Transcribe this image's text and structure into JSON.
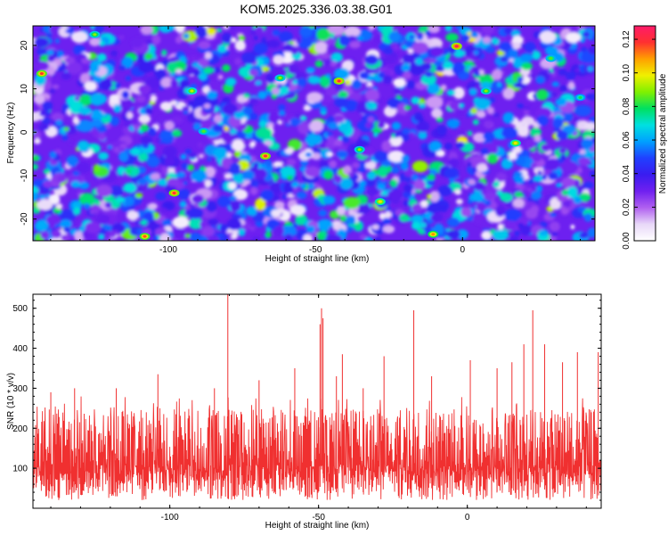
{
  "title": "KOM5.2025.336.03.38.G01",
  "chart_data": [
    {
      "type": "heatmap",
      "name": "spectrogram",
      "xlabel": "Height of straight line (km)",
      "ylabel": "Frequency (Hz)",
      "xlim": [
        -146,
        45
      ],
      "ylim": [
        -25,
        24.5
      ],
      "xticks": [
        "-100",
        "-50",
        "0"
      ],
      "xtick_values": [
        -100,
        -50,
        0
      ],
      "yticks": [
        "-20",
        "-10",
        "0",
        "10",
        "20"
      ],
      "ytick_values": [
        -20,
        -10,
        0,
        10,
        20
      ],
      "colorbar": {
        "label": "Normalized spectral amplitude",
        "range": [
          0,
          0.128
        ],
        "ticks": [
          "0.00",
          "0.02",
          "0.04",
          "0.06",
          "0.08",
          "0.10",
          "0.12"
        ],
        "tick_values": [
          0,
          0.02,
          0.04,
          0.06,
          0.08,
          0.1,
          0.12
        ],
        "stops": [
          "#ffffff",
          "#e8d8f8",
          "#b060f0",
          "#7020f0",
          "#3a1cf0",
          "#2040ff",
          "#00a0ff",
          "#00e0e0",
          "#00e060",
          "#80f000",
          "#f0f000",
          "#ffa000",
          "#ff3030",
          "#ff1a6a"
        ]
      },
      "description_of_values": "dense random speckle of normalized spectral amplitude, mostly 0.02-0.05 with scattered peaks near 0.10-0.12",
      "hotspots": [
        {
          "x": -143,
          "y": 13.5,
          "v": 0.118
        },
        {
          "x": -125,
          "y": 22.5,
          "v": 0.09
        },
        {
          "x": -108,
          "y": -24,
          "v": 0.115
        },
        {
          "x": -98,
          "y": -14,
          "v": 0.12
        },
        {
          "x": -92,
          "y": 9.5,
          "v": 0.095
        },
        {
          "x": -88,
          "y": 0.2,
          "v": 0.085
        },
        {
          "x": -67,
          "y": -5.5,
          "v": 0.12
        },
        {
          "x": -62,
          "y": 12.5,
          "v": 0.09
        },
        {
          "x": -42,
          "y": 11.8,
          "v": 0.122
        },
        {
          "x": -35,
          "y": -4,
          "v": 0.09
        },
        {
          "x": -28,
          "y": -16,
          "v": 0.1
        },
        {
          "x": -10,
          "y": -23.5,
          "v": 0.11
        },
        {
          "x": -2,
          "y": 19.8,
          "v": 0.125
        },
        {
          "x": 8,
          "y": 9.5,
          "v": 0.09
        },
        {
          "x": 18,
          "y": -2.5,
          "v": 0.1
        },
        {
          "x": 30,
          "y": 17,
          "v": 0.085
        },
        {
          "x": 40,
          "y": 8,
          "v": 0.08
        }
      ]
    },
    {
      "type": "line",
      "name": "snr",
      "xlabel": "Height of straight line (km)",
      "ylabel": "SNR (10 * v/v)",
      "xlim": [
        -146,
        45
      ],
      "ylim": [
        0,
        535
      ],
      "xticks": [
        "-100",
        "-50",
        "0"
      ],
      "xtick_values": [
        -100,
        -50,
        0
      ],
      "yticks": [
        "100",
        "200",
        "300",
        "400",
        "500"
      ],
      "ytick_values": [
        100,
        200,
        300,
        400,
        500
      ],
      "series": [
        {
          "name": "SNR",
          "color": "#f03030",
          "baseline_range": [
            20,
            270
          ],
          "typical_mean": 130,
          "peaks": [
            {
              "x": -80.5,
              "y": 535
            },
            {
              "x": -49,
              "y": 500
            },
            {
              "x": -48.5,
              "y": 475
            },
            {
              "x": -49.5,
              "y": 460
            },
            {
              "x": -18,
              "y": 495
            },
            {
              "x": 22,
              "y": 495
            },
            {
              "x": -140,
              "y": 290
            },
            {
              "x": -132,
              "y": 300
            },
            {
              "x": -118,
              "y": 300
            },
            {
              "x": -104,
              "y": 335
            },
            {
              "x": -85,
              "y": 300
            },
            {
              "x": -70,
              "y": 320
            },
            {
              "x": -58,
              "y": 350
            },
            {
              "x": -44,
              "y": 330
            },
            {
              "x": -42,
              "y": 385
            },
            {
              "x": -35,
              "y": 300
            },
            {
              "x": -28,
              "y": 380
            },
            {
              "x": -12,
              "y": 330
            },
            {
              "x": 1,
              "y": 370
            },
            {
              "x": 10,
              "y": 350
            },
            {
              "x": 15,
              "y": 365
            },
            {
              "x": 19,
              "y": 410
            },
            {
              "x": 26,
              "y": 410
            },
            {
              "x": 32,
              "y": 365
            },
            {
              "x": 37,
              "y": 390
            },
            {
              "x": 44,
              "y": 390
            }
          ]
        }
      ]
    }
  ]
}
